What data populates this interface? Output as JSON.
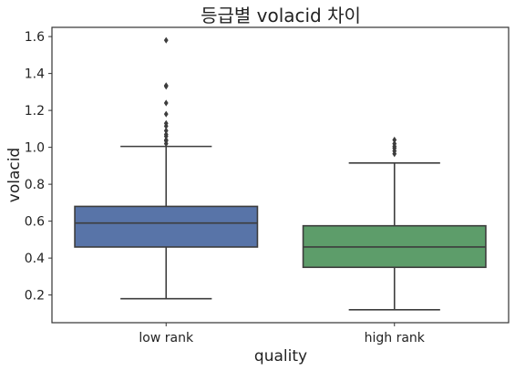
{
  "chart_data": {
    "type": "box",
    "title": "등급별 volacid 차이",
    "xlabel": "quality",
    "ylabel": "volacid",
    "ylim": [
      0.05,
      1.65
    ],
    "yticks": [
      0.2,
      0.4,
      0.6,
      0.8,
      1.0,
      1.2,
      1.4,
      1.6
    ],
    "ytick_labels": [
      "0.2",
      "0.4",
      "0.6",
      "0.8",
      "1.0",
      "1.2",
      "1.4",
      "1.6"
    ],
    "grid": false,
    "categories": [
      "low rank",
      "high rank"
    ],
    "boxes": [
      {
        "category": "low rank",
        "color": "#5874a8",
        "whisker_low": 0.18,
        "q1": 0.46,
        "median": 0.59,
        "q3": 0.68,
        "whisker_high": 1.005,
        "outliers": [
          1.02,
          1.035,
          1.04,
          1.06,
          1.07,
          1.09,
          1.115,
          1.13,
          1.18,
          1.24,
          1.33,
          1.335,
          1.58
        ]
      },
      {
        "category": "high rank",
        "color": "#5d9d6a",
        "whisker_low": 0.12,
        "q1": 0.35,
        "median": 0.46,
        "q3": 0.575,
        "whisker_high": 0.915,
        "outliers": [
          0.965,
          0.98,
          0.995,
          1.005,
          1.02,
          1.04
        ]
      }
    ]
  }
}
